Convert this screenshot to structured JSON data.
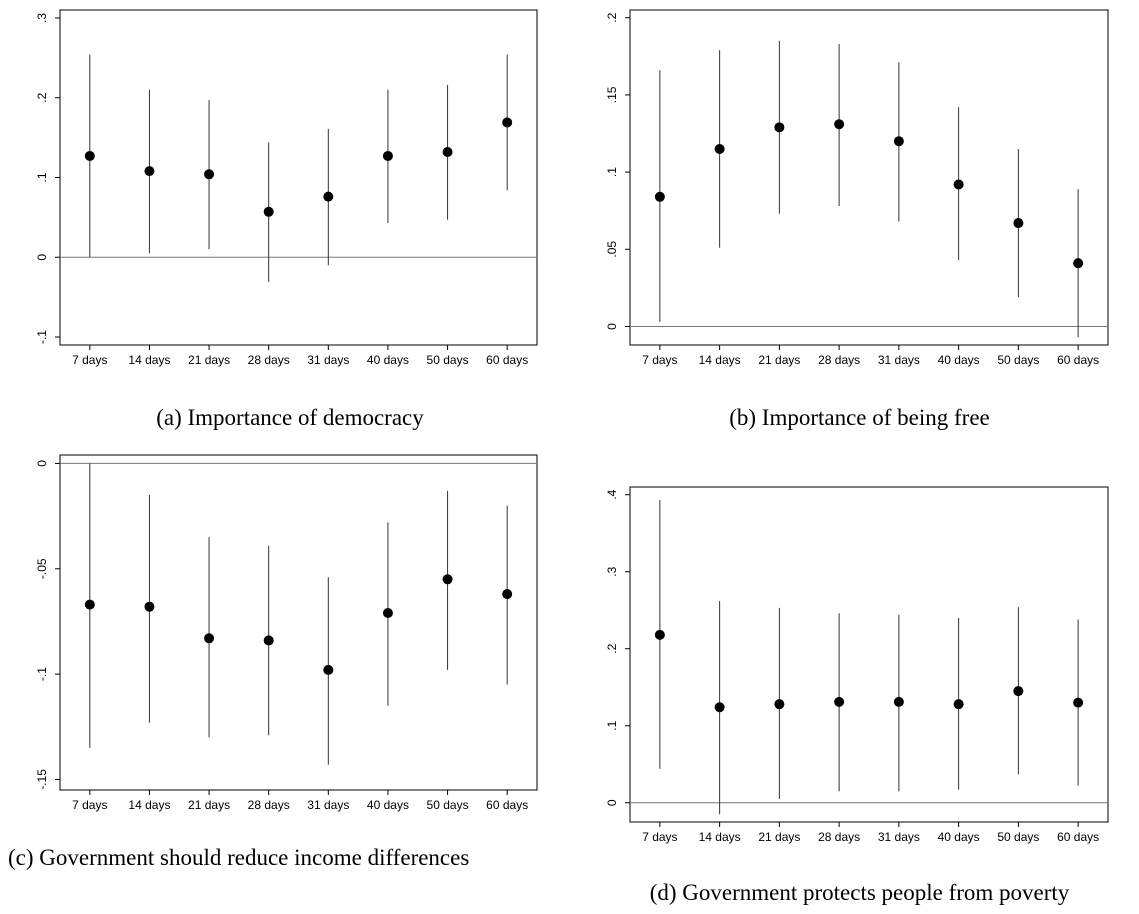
{
  "chart_data": [
    {
      "type": "errorbar",
      "title": "(a) Importance of democracy",
      "categories": [
        "7 days",
        "14 days",
        "21 days",
        "28 days",
        "31 days",
        "40 days",
        "50 days",
        "60 days"
      ],
      "values": [
        0.127,
        0.108,
        0.104,
        0.057,
        0.076,
        0.127,
        0.132,
        0.169
      ],
      "lower": [
        0.0,
        0.005,
        0.01,
        -0.031,
        -0.01,
        0.043,
        0.047,
        0.084
      ],
      "upper": [
        0.254,
        0.21,
        0.197,
        0.144,
        0.161,
        0.21,
        0.216,
        0.254
      ],
      "ylim": [
        -0.11,
        0.31
      ],
      "yticks": [
        {
          "value": -0.1,
          "label": "-.1"
        },
        0,
        {
          "value": 0.1,
          "label": ".1"
        },
        {
          "value": 0.2,
          "label": ".2"
        },
        {
          "value": 0.3,
          "label": ".3"
        }
      ],
      "hline": 0,
      "color": "#000000"
    },
    {
      "type": "errorbar",
      "title": "(b) Importance of being free",
      "categories": [
        "7 days",
        "14 days",
        "21 days",
        "28 days",
        "31 days",
        "40 days",
        "50 days",
        "60 days"
      ],
      "values": [
        0.084,
        0.115,
        0.129,
        0.131,
        0.12,
        0.092,
        0.067,
        0.041
      ],
      "lower": [
        0.003,
        0.051,
        0.073,
        0.078,
        0.068,
        0.043,
        0.019,
        -0.007
      ],
      "upper": [
        0.166,
        0.179,
        0.185,
        0.183,
        0.171,
        0.142,
        0.115,
        0.089
      ],
      "ylim": [
        -0.012,
        0.205
      ],
      "yticks": [
        0,
        {
          "value": 0.05,
          "label": ".05"
        },
        {
          "value": 0.1,
          "label": ".1"
        },
        {
          "value": 0.15,
          "label": ".15"
        },
        {
          "value": 0.2,
          "label": ".2"
        }
      ],
      "hline": 0,
      "color": "#000000"
    },
    {
      "type": "errorbar",
      "title": "(c) Government should reduce income differences",
      "categories": [
        "7 days",
        "14 days",
        "21 days",
        "28 days",
        "31 days",
        "40 days",
        "50 days",
        "60 days"
      ],
      "values": [
        -0.067,
        -0.068,
        -0.083,
        -0.084,
        -0.098,
        -0.071,
        -0.055,
        -0.062
      ],
      "lower": [
        -0.135,
        -0.123,
        -0.13,
        -0.129,
        -0.143,
        -0.115,
        -0.098,
        -0.105
      ],
      "upper": [
        0.0,
        -0.015,
        -0.035,
        -0.039,
        -0.054,
        -0.028,
        -0.013,
        -0.02
      ],
      "ylim": [
        -0.155,
        0.004
      ],
      "yticks": [
        {
          "value": -0.15,
          "label": "-.15"
        },
        {
          "value": -0.1,
          "label": "-.1"
        },
        {
          "value": -0.05,
          "label": "-.05"
        },
        0
      ],
      "hline": 0,
      "color": "#000000"
    },
    {
      "type": "errorbar",
      "title": "(d) Government protects people from poverty",
      "categories": [
        "7 days",
        "14 days",
        "21 days",
        "28 days",
        "31 days",
        "40 days",
        "50 days",
        "60 days"
      ],
      "values": [
        0.218,
        0.124,
        0.128,
        0.131,
        0.131,
        0.128,
        0.145,
        0.13
      ],
      "lower": [
        0.044,
        -0.015,
        0.005,
        0.015,
        0.015,
        0.017,
        0.037,
        0.022
      ],
      "upper": [
        0.393,
        0.262,
        0.253,
        0.246,
        0.244,
        0.24,
        0.254,
        0.238
      ],
      "ylim": [
        -0.025,
        0.41
      ],
      "yticks": [
        0,
        {
          "value": 0.1,
          "label": ".1"
        },
        {
          "value": 0.2,
          "label": ".2"
        },
        {
          "value": 0.3,
          "label": ".3"
        },
        {
          "value": 0.4,
          "label": ".4"
        }
      ],
      "hline": 0,
      "color": "#000000"
    }
  ]
}
